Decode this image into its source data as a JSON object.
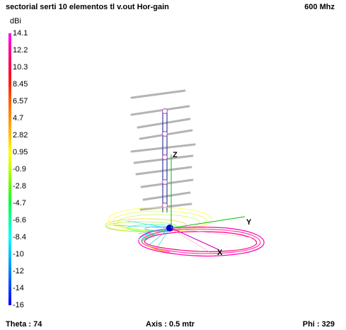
{
  "header": {
    "title": "sectorial serti 10 elementos tl v.out  Hor-gain",
    "frequency": "600 Mhz"
  },
  "scale": {
    "unit": "dBi",
    "ticks": [
      "14.1",
      "12.2",
      "10.3",
      "8.45",
      "6.57",
      "4.7",
      "2.82",
      "0.95",
      "-0.9",
      "-2.8",
      "-4.7",
      "-6.6",
      "-8.4",
      "-10",
      "-12",
      "-14",
      "-16"
    ],
    "colors": [
      "#ff00ff",
      "#ff0090",
      "#ff0040",
      "#ff2000",
      "#ff6000",
      "#ff9000",
      "#ffc000",
      "#ffff00",
      "#c0ff00",
      "#60ff00",
      "#00ff40",
      "#00ffa0",
      "#00ffff",
      "#00c0ff",
      "#0080ff",
      "#0040ff",
      "#0000ff"
    ]
  },
  "axes": {
    "x": "X",
    "y": "Y",
    "z": "Z"
  },
  "footer": {
    "theta": "Theta : 74",
    "axis": "Axis : 0.5 mtr",
    "phi": "Phi : 329"
  }
}
